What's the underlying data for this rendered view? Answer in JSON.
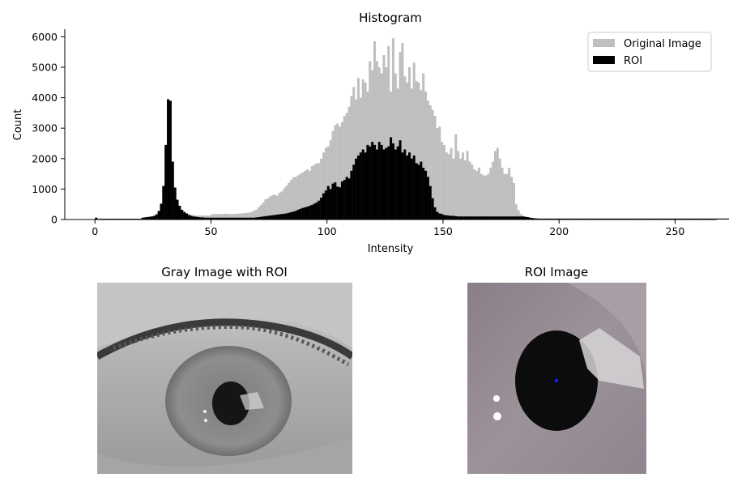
{
  "chart_data": [
    {
      "type": "bar",
      "title": "Histogram",
      "xlabel": "Intensity",
      "ylabel": "Count",
      "xlim": [
        -13,
        268
      ],
      "ylim": [
        0,
        6250
      ],
      "x_ticks": [
        0,
        50,
        100,
        150,
        200,
        250
      ],
      "y_ticks": [
        0,
        1000,
        2000,
        3000,
        4000,
        5000,
        6000
      ],
      "legend_position": "top-right",
      "series_colors": {
        "Original Image": "#bfbfbf",
        "ROI": "#000000"
      },
      "series": [
        {
          "name": "Original Image",
          "values": [
            60,
            20,
            25,
            25,
            25,
            25,
            25,
            25,
            25,
            25,
            25,
            25,
            25,
            25,
            25,
            25,
            25,
            25,
            25,
            25,
            60,
            70,
            80,
            90,
            100,
            120,
            170,
            280,
            520,
            1100,
            2450,
            3950,
            3900,
            1900,
            1050,
            650,
            450,
            320,
            250,
            200,
            170,
            150,
            140,
            130,
            130,
            130,
            130,
            130,
            130,
            130,
            180,
            180,
            180,
            180,
            180,
            190,
            190,
            180,
            180,
            180,
            190,
            190,
            200,
            200,
            210,
            220,
            230,
            250,
            280,
            320,
            400,
            480,
            560,
            660,
            700,
            760,
            800,
            820,
            780,
            880,
            920,
            1020,
            1100,
            1200,
            1300,
            1380,
            1400,
            1450,
            1500,
            1550,
            1600,
            1650,
            1600,
            1750,
            1800,
            1850,
            1850,
            2000,
            2200,
            2350,
            2400,
            2600,
            2900,
            3100,
            3150,
            3050,
            3200,
            3400,
            3500,
            3700,
            4050,
            4350,
            3950,
            4650,
            4000,
            4600,
            4500,
            4200,
            5200,
            4900,
            5850,
            5200,
            5000,
            4800,
            5400,
            5000,
            5700,
            4200,
            5950,
            4800,
            4300,
            5500,
            5800,
            4700,
            4500,
            5000,
            4300,
            5150,
            4550,
            4500,
            4250,
            4800,
            4200,
            3900,
            3750,
            3600,
            3400,
            3000,
            3050,
            2550,
            2450,
            2200,
            2150,
            2350,
            2000,
            2800,
            2250,
            2000,
            2200,
            1950,
            2250,
            1900,
            1800,
            1650,
            1600,
            1700,
            1500,
            1450,
            1450,
            1500,
            1700,
            1900,
            2250,
            2350,
            2000,
            1700,
            1500,
            1500,
            1700,
            1400,
            1200,
            500,
            300,
            180,
            120,
            80,
            60,
            50,
            40,
            35,
            30,
            30,
            30,
            30,
            30,
            30,
            30,
            30,
            30,
            30,
            30,
            30,
            30,
            30,
            30,
            30,
            30,
            30,
            30,
            30,
            30,
            30,
            30,
            30,
            30,
            30,
            30,
            30,
            30,
            30,
            30,
            30,
            30,
            30,
            30,
            30,
            30,
            30,
            30,
            30,
            30,
            30,
            30,
            30,
            30,
            30,
            30,
            30,
            30,
            30,
            30,
            30,
            30,
            30,
            30,
            30,
            30,
            30,
            30,
            30,
            30,
            30,
            30,
            30,
            30,
            30,
            30,
            30,
            30,
            30,
            30,
            30,
            30,
            30,
            30,
            30,
            30,
            30,
            30,
            30,
            30,
            30,
            30,
            30,
            30,
            30,
            30,
            30,
            30,
            30,
            30,
            30,
            30,
            30,
            30,
            30,
            30,
            30,
            120
          ]
        },
        {
          "name": "ROI",
          "values": [
            60,
            20,
            25,
            25,
            25,
            25,
            25,
            25,
            25,
            25,
            25,
            25,
            25,
            25,
            25,
            25,
            25,
            25,
            25,
            25,
            60,
            70,
            80,
            90,
            100,
            120,
            170,
            280,
            520,
            1100,
            2450,
            3950,
            3900,
            1900,
            1050,
            650,
            450,
            320,
            250,
            200,
            150,
            120,
            100,
            90,
            80,
            70,
            70,
            60,
            60,
            60,
            60,
            60,
            60,
            60,
            60,
            60,
            60,
            60,
            60,
            60,
            60,
            60,
            60,
            60,
            60,
            60,
            60,
            60,
            60,
            70,
            80,
            90,
            100,
            110,
            120,
            130,
            140,
            150,
            160,
            170,
            180,
            190,
            200,
            220,
            240,
            260,
            280,
            320,
            350,
            380,
            400,
            420,
            450,
            480,
            520,
            560,
            620,
            720,
            860,
            950,
            1100,
            1000,
            1180,
            1220,
            1080,
            1060,
            1250,
            1300,
            1400,
            1350,
            1600,
            1800,
            2000,
            2100,
            2200,
            2300,
            2200,
            2450,
            2400,
            2550,
            2450,
            2300,
            2550,
            2450,
            2300,
            2350,
            2400,
            2700,
            2500,
            2300,
            2400,
            2600,
            2200,
            2300,
            2100,
            2200,
            2000,
            2100,
            1850,
            1800,
            1900,
            1700,
            1600,
            1400,
            1100,
            700,
            400,
            250,
            200,
            180,
            150,
            140,
            130,
            120,
            120,
            110,
            100,
            100,
            100,
            100,
            100,
            100,
            100,
            100,
            100,
            100,
            100,
            100,
            100,
            100,
            100,
            100,
            100,
            100,
            100,
            100,
            100,
            100,
            100,
            100,
            100,
            100,
            100,
            100,
            100,
            90,
            80,
            60,
            50,
            40,
            35,
            30,
            30,
            30,
            30,
            30,
            30,
            30,
            30,
            30,
            30,
            30,
            30,
            30,
            30,
            30,
            30,
            30,
            30,
            30,
            30,
            30,
            30,
            30,
            30,
            30,
            30,
            30,
            30,
            30,
            30,
            30,
            30,
            30,
            30,
            30,
            30,
            30,
            30,
            30,
            30,
            30,
            30,
            30,
            30,
            30,
            30,
            30,
            30,
            30,
            30,
            30,
            30,
            30,
            30,
            30,
            30,
            30,
            30,
            30,
            30,
            30,
            30,
            30,
            30,
            30,
            30,
            30,
            30,
            30,
            30,
            30,
            30,
            30,
            30,
            30,
            30,
            30,
            30,
            30,
            30,
            30,
            30,
            30,
            30,
            30,
            30,
            30,
            30,
            30,
            30,
            30,
            30,
            30,
            30,
            30,
            30,
            30,
            30,
            30,
            30,
            30,
            30,
            120
          ]
        }
      ]
    }
  ],
  "panels": {
    "gray_title": "Gray Image with ROI",
    "roi_title": "ROI Image"
  }
}
